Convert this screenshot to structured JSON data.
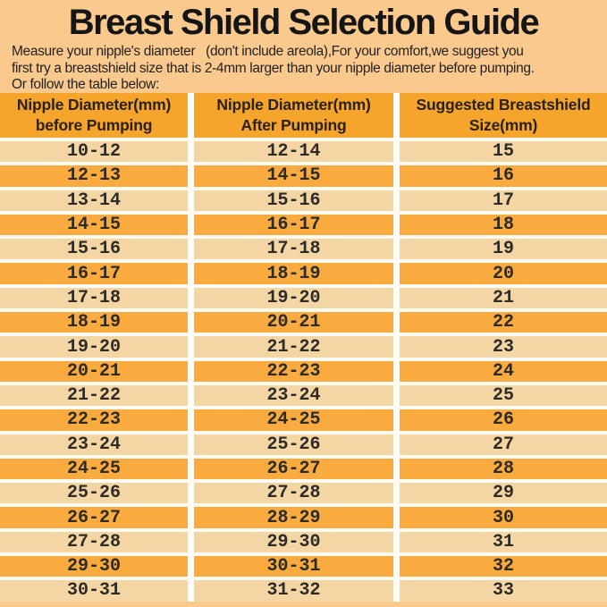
{
  "page": {
    "title": "Breast Shield Selection Guide",
    "intro_lines": [
      "Measure your nipple's diameter   (don't include areola),For your comfort,we suggest you",
      "first try a breastshield size that is 2-4mm larger than your nipple diameter before pumping.",
      "Or follow the table below:"
    ]
  },
  "table": {
    "header_lines": [
      {
        "line1": "Nipple Diameter(mm)",
        "line2": "before Pumping"
      },
      {
        "line1": "Nipple Diameter(mm)",
        "line2": "After Pumping"
      },
      {
        "line1": "Suggested Breastshield",
        "line2": "Size(mm)"
      }
    ]
  },
  "chart_data": {
    "type": "table",
    "title": "Breast Shield Selection Guide",
    "columns": [
      "Nipple Diameter(mm) before Pumping",
      "Nipple Diameter(mm) After Pumping",
      "Suggested Breastshield Size(mm)"
    ],
    "rows": [
      [
        "10-12",
        "12-14",
        "15"
      ],
      [
        "12-13",
        "14-15",
        "16"
      ],
      [
        "13-14",
        "15-16",
        "17"
      ],
      [
        "14-15",
        "16-17",
        "18"
      ],
      [
        "15-16",
        "17-18",
        "19"
      ],
      [
        "16-17",
        "18-19",
        "20"
      ],
      [
        "17-18",
        "19-20",
        "21"
      ],
      [
        "18-19",
        "20-21",
        "22"
      ],
      [
        "19-20",
        "21-22",
        "23"
      ],
      [
        "20-21",
        "22-23",
        "24"
      ],
      [
        "21-22",
        "23-24",
        "25"
      ],
      [
        "22-23",
        "24-25",
        "26"
      ],
      [
        "23-24",
        "25-26",
        "27"
      ],
      [
        "24-25",
        "26-27",
        "28"
      ],
      [
        "25-26",
        "27-28",
        "29"
      ],
      [
        "26-27",
        "28-29",
        "30"
      ],
      [
        "27-28",
        "29-30",
        "31"
      ],
      [
        "29-30",
        "30-31",
        "32"
      ],
      [
        "30-31",
        "31-32",
        "33"
      ]
    ],
    "layout": {
      "row_striping": [
        "light",
        "orange"
      ],
      "grid_lines": "white separators between rows and columns",
      "legend": "none"
    }
  },
  "colors": {
    "bg": "#f9c98e",
    "header-bg": "#f5a42c",
    "row-light": "#f3d6a4",
    "row-orange": "#f9ab40",
    "separator": "#fdfbf2",
    "text": "#1c1c1c"
  }
}
